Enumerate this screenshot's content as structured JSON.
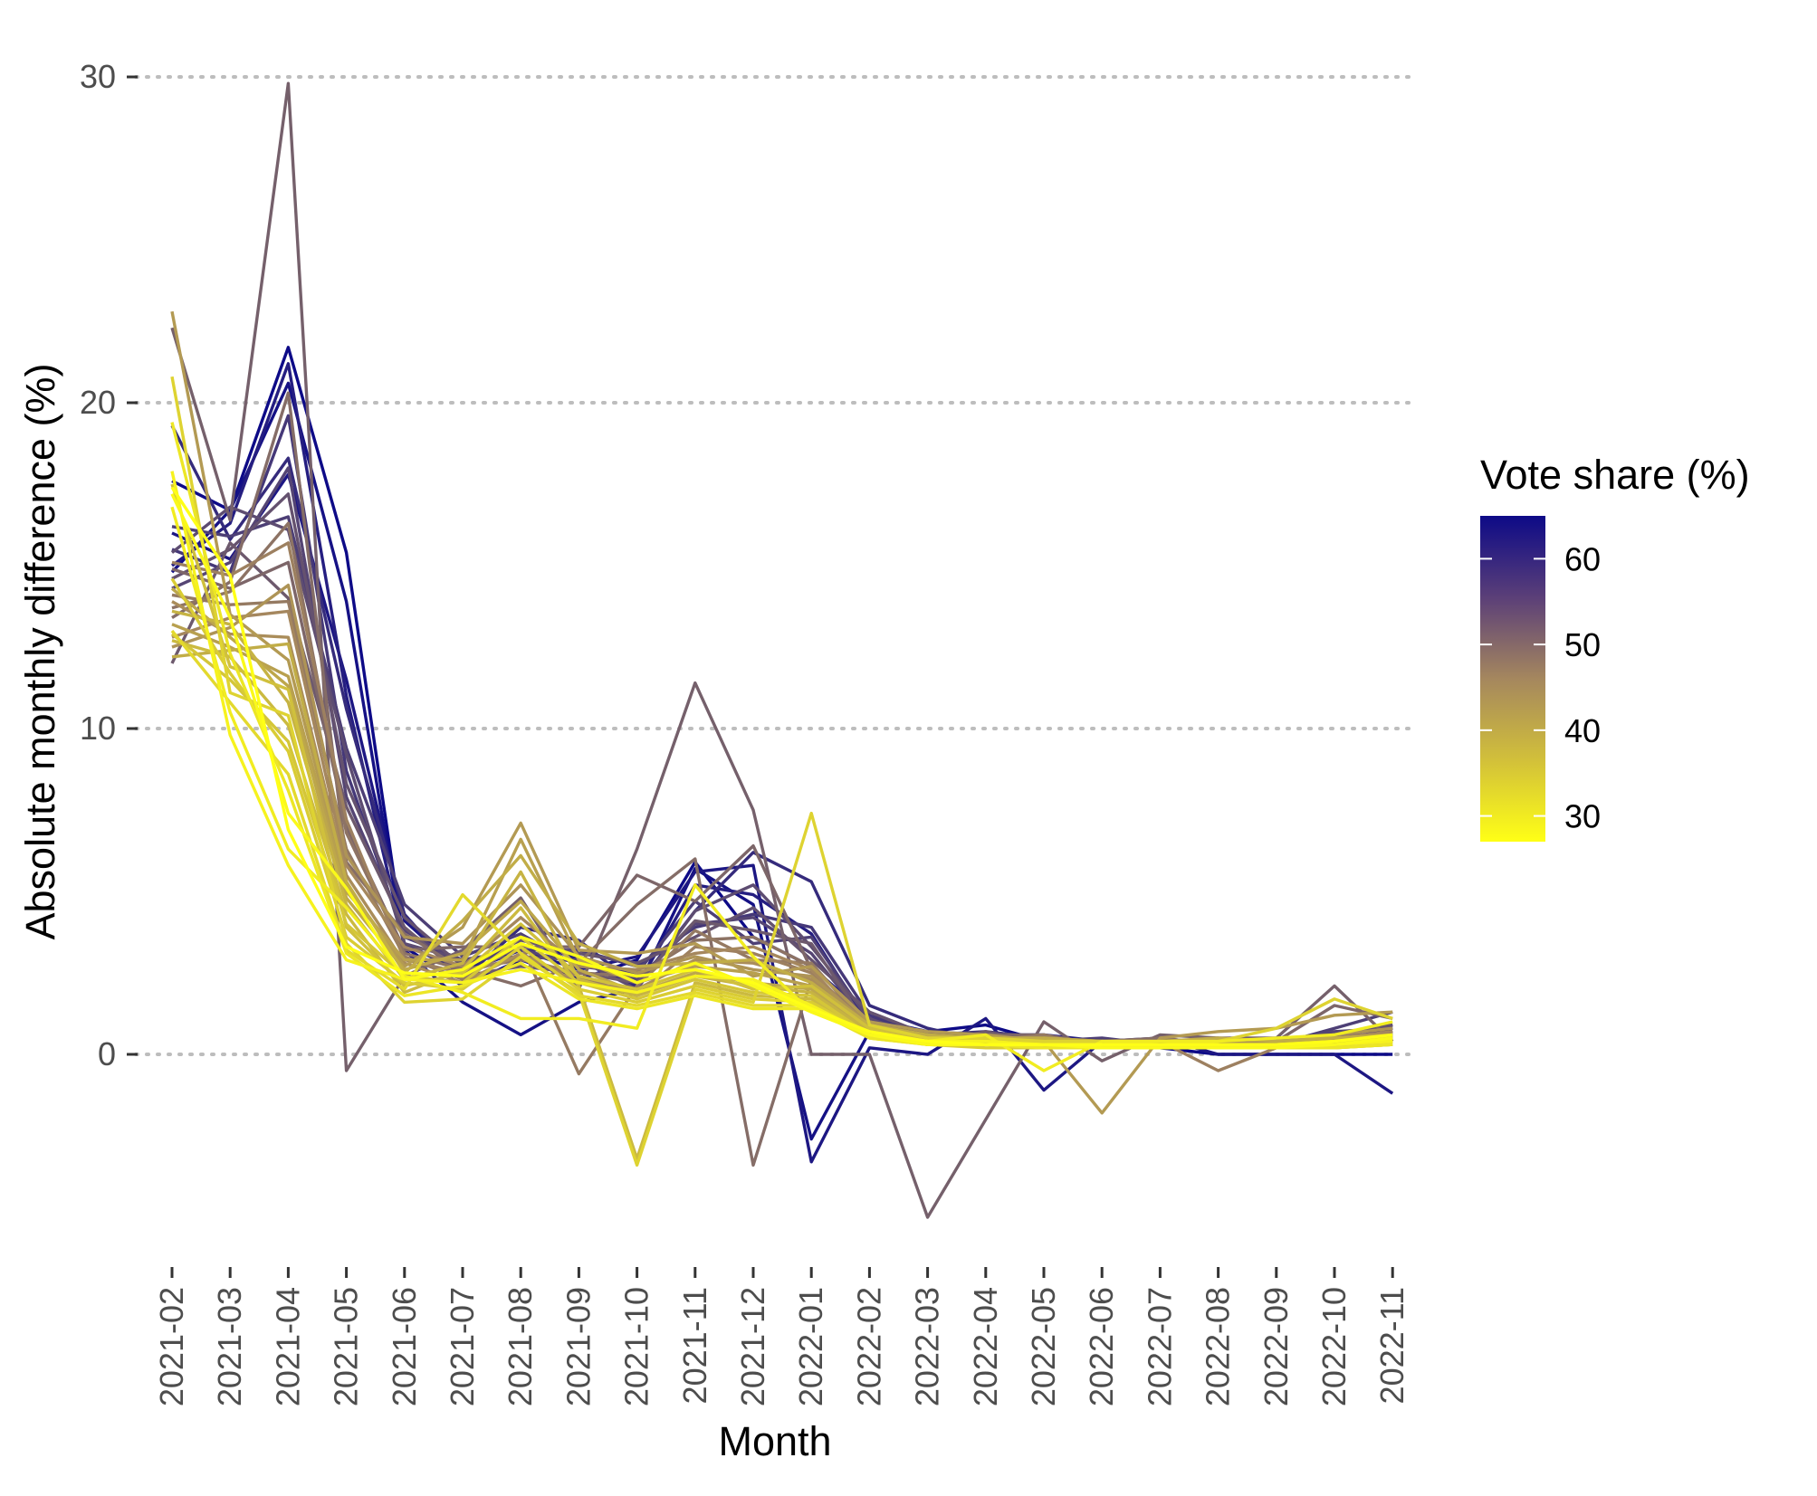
{
  "chart_data": {
    "type": "line",
    "title": "",
    "xlabel": "Month",
    "ylabel": "Absolute monthly difference (%)",
    "categories": [
      "2021-02",
      "2021-03",
      "2021-04",
      "2021-05",
      "2021-06",
      "2021-07",
      "2021-08",
      "2021-09",
      "2021-10",
      "2021-11",
      "2021-12",
      "2022-01",
      "2022-02",
      "2022-03",
      "2022-04",
      "2022-05",
      "2022-06",
      "2022-07",
      "2022-08",
      "2022-09",
      "2022-10",
      "2022-11"
    ],
    "ylim": [
      -6,
      30.5
    ],
    "yticks": [
      0,
      10,
      20,
      30
    ],
    "grid": "horizontal dotted at major y ticks",
    "legend": {
      "title": "Vote share (%)",
      "placement": "right",
      "type": "colorbar",
      "range": [
        27,
        65
      ],
      "breaks": [
        30,
        40,
        50,
        60
      ],
      "colors": {
        "low": "#ffff16",
        "mid": "#a5875e",
        "high": "#0d0a87"
      }
    },
    "series": [
      {
        "vote_share": 65,
        "values": [
          17.6,
          16.7,
          21.7,
          15.4,
          3.3,
          2.1,
          2.9,
          2.3,
          2.9,
          5.9,
          3.6,
          2.7,
          1.1,
          0.7,
          0.9,
          0.4,
          0.3,
          0.2,
          0.0,
          0.0,
          0.0,
          0.0
        ]
      },
      {
        "vote_share": 64,
        "values": [
          14.8,
          16.7,
          20.6,
          13.9,
          3.2,
          1.6,
          0.6,
          1.6,
          2.0,
          5.7,
          4.6,
          -2.6,
          0.7,
          0.3,
          0.4,
          0.3,
          0.2,
          0.2,
          0.2,
          0.3,
          0.6,
          0.9
        ]
      },
      {
        "vote_share": 63,
        "values": [
          16.0,
          15.2,
          17.8,
          11.5,
          4.1,
          2.5,
          3.2,
          2.6,
          3.0,
          5.6,
          5.8,
          -3.3,
          0.2,
          0.0,
          1.1,
          -1.1,
          0.4,
          0.5,
          0.0,
          0.0,
          0.0,
          -1.2
        ]
      },
      {
        "vote_share": 62,
        "values": [
          15.0,
          16.3,
          21.2,
          11.0,
          3.4,
          2.5,
          3.6,
          2.9,
          2.1,
          5.2,
          4.9,
          3.7,
          0.9,
          0.6,
          0.6,
          0.6,
          0.4,
          0.3,
          0.3,
          0.3,
          0.4,
          0.8
        ]
      },
      {
        "vote_share": 60,
        "values": [
          19.3,
          15.8,
          18.3,
          10.6,
          4.3,
          2.3,
          3.9,
          3.5,
          2.1,
          4.4,
          6.2,
          5.3,
          1.5,
          0.8,
          0.4,
          0.4,
          0.3,
          0.3,
          0.2,
          0.2,
          0.3,
          0.7
        ]
      },
      {
        "vote_share": 58,
        "values": [
          15.5,
          14.8,
          19.6,
          8.7,
          3.6,
          2.9,
          3.2,
          3.2,
          2.7,
          3.9,
          4.3,
          3.9,
          1.2,
          0.6,
          0.7,
          0.5,
          0.3,
          0.4,
          0.3,
          0.2,
          0.5,
          0.9
        ]
      },
      {
        "vote_share": 57,
        "values": [
          16.2,
          15.9,
          16.5,
          9.4,
          4.6,
          3.0,
          3.7,
          2.7,
          2.5,
          4.7,
          3.4,
          3.6,
          1.0,
          0.4,
          0.6,
          0.4,
          0.5,
          0.3,
          0.4,
          0.3,
          0.8,
          1.3
        ]
      },
      {
        "vote_share": 56,
        "values": [
          14.3,
          15.1,
          18.0,
          7.9,
          3.8,
          2.8,
          3.2,
          2.8,
          2.3,
          4.0,
          4.2,
          3.1,
          0.9,
          0.7,
          0.6,
          0.2,
          0.4,
          0.2,
          0.4,
          0.4,
          0.7,
          0.8
        ]
      },
      {
        "vote_share": 55,
        "values": [
          15.4,
          16.8,
          16.1,
          9.2,
          3.4,
          2.9,
          3.0,
          2.9,
          2.0,
          4.4,
          5.2,
          3.3,
          1.1,
          0.5,
          0.4,
          0.5,
          0.3,
          0.4,
          0.2,
          0.3,
          0.5,
          0.6
        ]
      },
      {
        "vote_share": 54,
        "values": [
          14.6,
          15.5,
          17.2,
          8.3,
          4.2,
          2.7,
          3.5,
          3.1,
          2.8,
          3.6,
          4.5,
          2.9,
          1.3,
          0.6,
          0.5,
          0.4,
          0.2,
          0.5,
          0.3,
          0.4,
          0.6,
          0.9
        ]
      },
      {
        "vote_share": 53,
        "values": [
          12.0,
          15.7,
          14.0,
          7.6,
          3.9,
          2.4,
          2.7,
          2.5,
          2.2,
          4.1,
          3.8,
          3.4,
          0.8,
          0.3,
          0.7,
          0.3,
          0.4,
          0.3,
          0.5,
          0.2,
          0.4,
          0.7
        ]
      },
      {
        "vote_share": 52,
        "values": [
          22.3,
          16.4,
          29.8,
          -0.5,
          2.4,
          3.2,
          4.8,
          2.0,
          6.3,
          11.4,
          7.5,
          0.0,
          0.0,
          -5.0,
          -2.0,
          1.0,
          -0.2,
          0.6,
          0.5,
          0.5,
          2.1,
          0.4
        ]
      },
      {
        "vote_share": 51,
        "values": [
          14.9,
          14.3,
          15.1,
          7.0,
          3.2,
          3.3,
          3.3,
          3.3,
          5.5,
          4.7,
          6.4,
          2.6,
          0.7,
          0.5,
          0.6,
          0.6,
          0.3,
          0.3,
          0.4,
          0.4,
          1.5,
          1.1
        ]
      },
      {
        "vote_share": 50,
        "values": [
          13.4,
          14.5,
          20.3,
          5.9,
          3.7,
          2.6,
          2.1,
          2.8,
          4.6,
          6.0,
          -3.4,
          2.3,
          0.9,
          0.6,
          0.3,
          0.2,
          0.4,
          0.5,
          0.3,
          0.3,
          0.4,
          0.5
        ]
      },
      {
        "vote_share": 49,
        "values": [
          13.7,
          14.2,
          16.3,
          6.8,
          3.1,
          2.6,
          2.9,
          2.5,
          2.4,
          3.5,
          3.6,
          2.7,
          1.0,
          0.5,
          0.5,
          0.3,
          0.3,
          0.3,
          0.3,
          0.3,
          0.5,
          0.6
        ]
      },
      {
        "vote_share": 48,
        "values": [
          14.1,
          13.8,
          13.9,
          6.3,
          3.0,
          2.3,
          3.4,
          -0.6,
          2.1,
          3.8,
          2.9,
          2.8,
          0.8,
          0.4,
          0.4,
          0.6,
          0.2,
          0.3,
          0.4,
          0.2,
          0.3,
          0.6
        ]
      },
      {
        "vote_share": 47,
        "values": [
          15.1,
          14.7,
          15.7,
          7.2,
          2.9,
          2.5,
          3.0,
          2.4,
          1.8,
          3.3,
          3.1,
          2.5,
          0.9,
          0.5,
          0.4,
          0.4,
          0.3,
          0.4,
          -0.5,
          0.2,
          0.4,
          0.5
        ]
      },
      {
        "vote_share": 46,
        "values": [
          12.8,
          13.4,
          13.6,
          5.8,
          3.3,
          2.7,
          4.2,
          2.7,
          2.6,
          3.1,
          3.3,
          2.6,
          0.7,
          0.6,
          0.5,
          0.3,
          0.4,
          0.3,
          0.3,
          0.4,
          0.5,
          0.7
        ]
      },
      {
        "vote_share": 45,
        "values": [
          13.9,
          12.9,
          12.8,
          5.5,
          2.8,
          2.2,
          3.1,
          2.2,
          2.0,
          2.9,
          2.8,
          2.3,
          0.8,
          0.4,
          0.5,
          0.2,
          0.2,
          0.2,
          0.2,
          0.2,
          0.3,
          0.4
        ]
      },
      {
        "vote_share": 44,
        "values": [
          12.5,
          13.1,
          14.4,
          6.1,
          3.6,
          3.4,
          5.2,
          3.0,
          2.5,
          3.0,
          2.6,
          2.4,
          0.9,
          0.5,
          0.3,
          0.5,
          0.4,
          0.4,
          0.4,
          0.3,
          0.6,
          0.8
        ]
      },
      {
        "vote_share": 43,
        "values": [
          22.8,
          13.5,
          12.1,
          5.2,
          2.7,
          3.9,
          7.1,
          3.2,
          3.1,
          3.4,
          2.4,
          2.7,
          1.0,
          0.7,
          0.6,
          0.4,
          -1.8,
          0.5,
          0.7,
          0.8,
          1.2,
          1.3
        ]
      },
      {
        "vote_share": 42,
        "values": [
          13.2,
          12.5,
          11.6,
          5.0,
          2.9,
          2.9,
          6.6,
          2.9,
          2.2,
          2.7,
          2.5,
          2.1,
          0.8,
          0.4,
          0.5,
          0.3,
          0.3,
          0.3,
          0.3,
          0.3,
          0.4,
          0.5
        ]
      },
      {
        "vote_share": 41,
        "values": [
          14.3,
          12.8,
          11.3,
          4.8,
          2.6,
          3.1,
          4.7,
          2.6,
          1.9,
          2.5,
          2.2,
          2.0,
          0.7,
          0.5,
          0.4,
          0.4,
          0.3,
          0.2,
          0.3,
          0.2,
          0.3,
          0.4
        ]
      },
      {
        "vote_share": 40,
        "values": [
          12.2,
          12.4,
          12.6,
          5.3,
          2.5,
          4.1,
          6.1,
          3.4,
          2.7,
          2.8,
          2.9,
          2.2,
          0.9,
          0.6,
          0.5,
          0.5,
          0.4,
          0.4,
          0.5,
          0.4,
          0.5,
          0.6
        ]
      },
      {
        "vote_share": 39,
        "values": [
          13.6,
          13.2,
          10.8,
          4.6,
          2.3,
          2.8,
          5.6,
          2.3,
          1.8,
          2.4,
          2.1,
          1.9,
          0.7,
          0.4,
          0.3,
          0.3,
          0.2,
          0.3,
          0.2,
          0.3,
          0.3,
          0.4
        ]
      },
      {
        "vote_share": 38,
        "values": [
          12.7,
          12.2,
          10.1,
          4.3,
          1.9,
          2.6,
          4.5,
          2.1,
          -3.2,
          2.2,
          1.8,
          1.7,
          0.6,
          0.3,
          0.3,
          0.2,
          0.2,
          0.2,
          0.2,
          0.2,
          0.2,
          0.3
        ]
      },
      {
        "vote_share": 37,
        "values": [
          17.5,
          11.9,
          11.2,
          3.9,
          2.1,
          2.5,
          4.0,
          2.4,
          2.0,
          2.6,
          2.0,
          2.1,
          0.8,
          0.5,
          0.4,
          0.4,
          0.3,
          0.3,
          0.3,
          0.3,
          0.4,
          0.5
        ]
      },
      {
        "vote_share": 36,
        "values": [
          12.9,
          11.5,
          9.6,
          4.0,
          2.4,
          2.2,
          3.6,
          2.2,
          1.7,
          2.3,
          1.9,
          1.8,
          0.6,
          0.4,
          0.3,
          0.3,
          0.2,
          0.3,
          0.3,
          0.2,
          0.3,
          0.4
        ]
      },
      {
        "vote_share": 35,
        "values": [
          14.6,
          11.7,
          9.3,
          3.6,
          2.2,
          2.0,
          3.3,
          2.0,
          1.6,
          2.1,
          1.7,
          1.6,
          0.6,
          0.3,
          0.2,
          0.2,
          0.2,
          0.2,
          0.2,
          0.2,
          0.2,
          0.3
        ]
      },
      {
        "vote_share": 34,
        "values": [
          20.8,
          11.1,
          10.4,
          3.4,
          1.6,
          1.7,
          3.0,
          1.9,
          -3.4,
          2.0,
          1.6,
          7.4,
          0.9,
          0.5,
          0.5,
          0.4,
          0.4,
          0.3,
          0.4,
          0.8,
          1.7,
          1.1
        ]
      },
      {
        "vote_share": 33,
        "values": [
          13.0,
          10.8,
          8.6,
          3.2,
          2.0,
          4.9,
          3.1,
          1.8,
          1.5,
          1.9,
          1.5,
          1.5,
          0.5,
          0.3,
          0.3,
          0.3,
          0.2,
          0.2,
          0.2,
          0.2,
          0.3,
          0.4
        ]
      },
      {
        "vote_share": 31,
        "values": [
          19.4,
          12.3,
          8.1,
          3.1,
          1.8,
          2.1,
          2.8,
          1.7,
          1.4,
          1.8,
          1.4,
          1.4,
          0.5,
          0.3,
          0.3,
          0.2,
          0.2,
          0.2,
          0.2,
          0.2,
          0.2,
          0.3
        ]
      },
      {
        "vote_share": 30,
        "values": [
          16.8,
          10.5,
          6.3,
          4.5,
          2.4,
          1.9,
          1.1,
          1.1,
          0.8,
          5.2,
          3.0,
          1.3,
          0.6,
          0.4,
          0.6,
          -0.5,
          0.4,
          0.4,
          0.4,
          0.5,
          0.6,
          1.0
        ]
      },
      {
        "vote_share": 29,
        "values": [
          17.9,
          9.8,
          5.8,
          2.9,
          2.3,
          2.2,
          2.6,
          2.2,
          1.9,
          2.4,
          2.3,
          1.5,
          0.6,
          0.4,
          0.4,
          0.3,
          0.3,
          0.3,
          0.3,
          0.3,
          0.3,
          0.4
        ]
      },
      {
        "vote_share": 28,
        "values": [
          17.2,
          13.4,
          7.4,
          5.1,
          2.3,
          2.6,
          3.6,
          3.0,
          2.2,
          2.8,
          2.1,
          1.3,
          0.6,
          0.3,
          0.3,
          0.3,
          0.2,
          0.2,
          0.2,
          0.2,
          0.3,
          0.5
        ]
      },
      {
        "vote_share": 27,
        "values": [
          17.4,
          14.7,
          6.9,
          3.3,
          2.5,
          2.4,
          3.4,
          2.8,
          2.4,
          2.6,
          2.2,
          1.4,
          0.7,
          0.4,
          0.3,
          0.3,
          0.3,
          0.3,
          0.3,
          0.3,
          0.4,
          0.6
        ]
      }
    ]
  }
}
